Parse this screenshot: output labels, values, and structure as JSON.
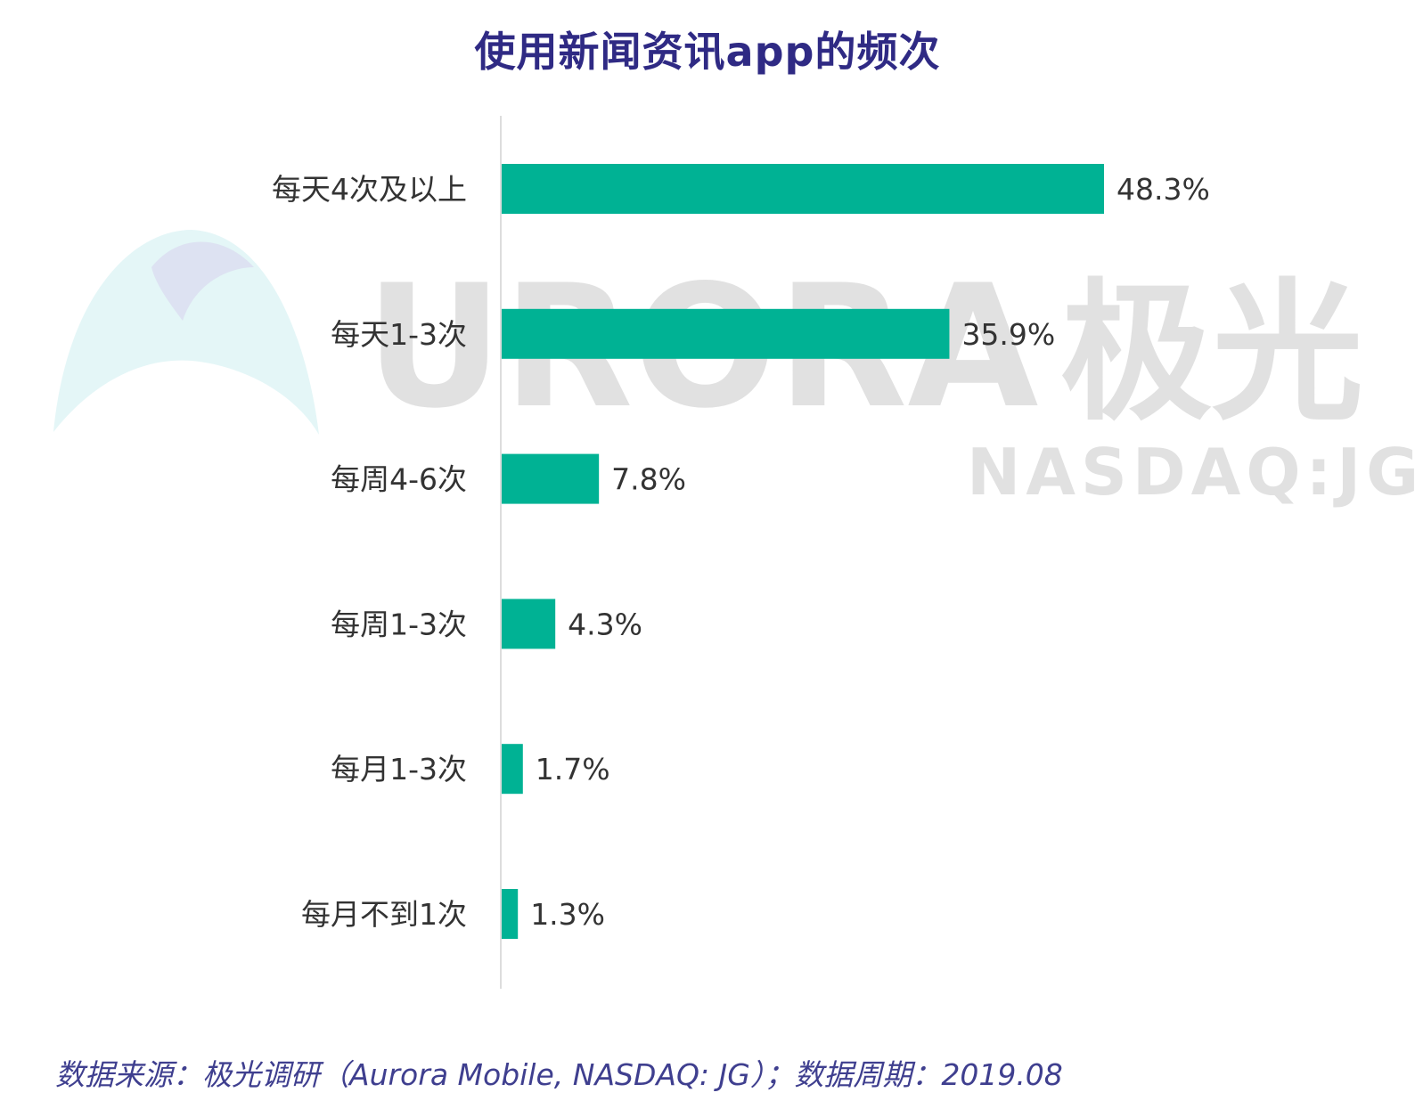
{
  "watermark": {
    "brand_text": "URORA",
    "brand_cn": "极光",
    "ticker": "NASDAQ:JG",
    "logo_icon": "aurora-arc-logo-icon"
  },
  "chart_data": {
    "type": "bar",
    "orientation": "horizontal",
    "title": "使用新闻资讯app的频次",
    "categories": [
      "每天4次及以上",
      "每天1-3次",
      "每周4-6次",
      "每周1-3次",
      "每月1-3次",
      "每月不到1次"
    ],
    "values": [
      48.3,
      35.9,
      7.8,
      4.3,
      1.7,
      1.3
    ],
    "value_labels": [
      "48.3%",
      "35.9%",
      "7.8%",
      "4.3%",
      "1.7%",
      "1.3%"
    ],
    "unit": "%",
    "xlim": [
      0,
      48.3
    ],
    "grid": false,
    "bar_color": "#00b294",
    "axis_color": "#dddddd",
    "title_color": "#2f2a84"
  },
  "footer": {
    "source": "数据来源：极光调研（Aurora Mobile, NASDAQ: JG）；数据周期：2019.08"
  }
}
